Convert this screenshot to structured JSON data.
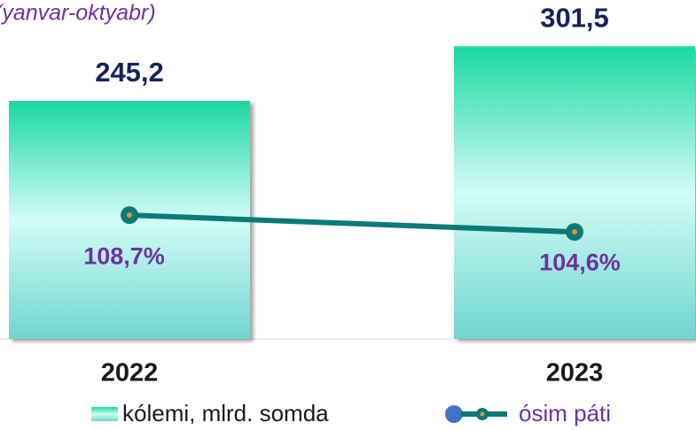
{
  "chart_data": {
    "type": "bar",
    "title": "(yanvar-oktyabr)",
    "categories": [
      "2022",
      "2023"
    ],
    "ylim": [
      0,
      320
    ],
    "y2lim": [
      78.5,
      154.3
    ],
    "series": [
      {
        "name": "kólemi, mlrd. somda",
        "type": "bar",
        "color": "#19d9a0",
        "values": [
          245.2,
          301.5
        ],
        "value_labels": [
          "245,2",
          "301,5"
        ]
      },
      {
        "name": "ósim páti",
        "type": "line",
        "axis": "y2",
        "color": "#0b7a78",
        "values": [
          108.7,
          104.6
        ],
        "value_labels": [
          "108,7%",
          "104,6%"
        ]
      }
    ]
  }
}
